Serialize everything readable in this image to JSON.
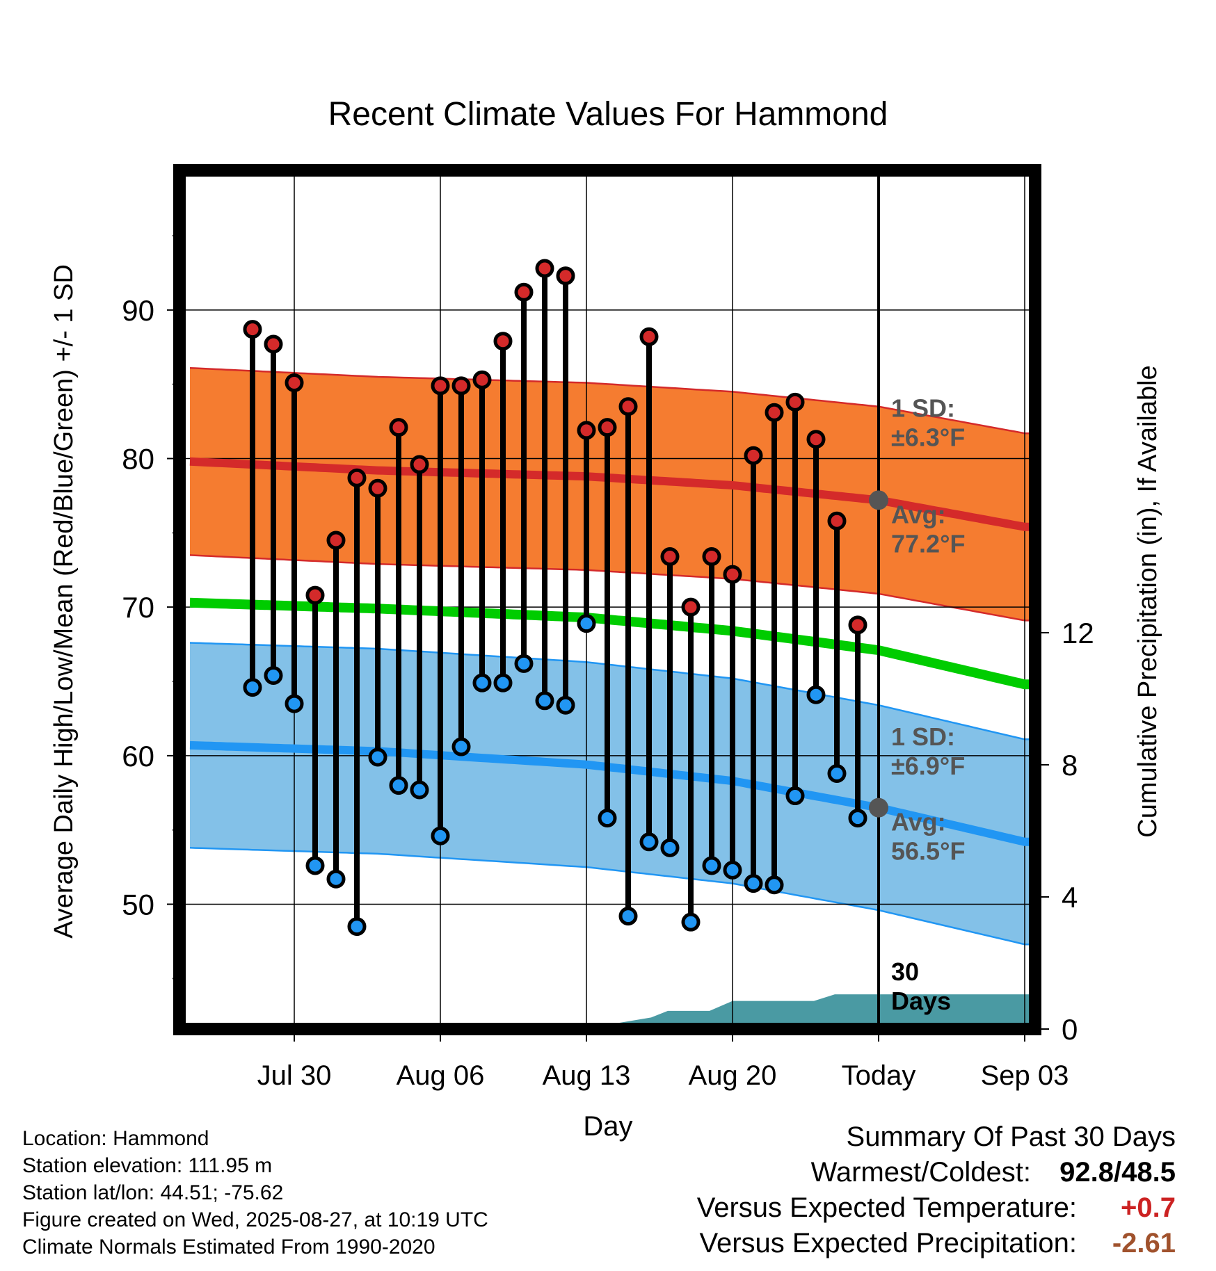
{
  "chart_data": {
    "type": "line",
    "title": "Recent Climate Values For Hammond",
    "xlabel": "Day",
    "ylabel_left": "Average Daily High/Low/Mean (Red/Blue/Green) +/- 1 SD",
    "ylabel_right": "Cumulative Precipitation (in), If Available",
    "x_day_range": [
      -33.5,
      7.5
    ],
    "x_ticks": [
      {
        "day": -28,
        "label": "Jul 30"
      },
      {
        "day": -21,
        "label": "Aug 06"
      },
      {
        "day": -14,
        "label": "Aug 13"
      },
      {
        "day": -7,
        "label": "Aug 20"
      },
      {
        "day": 0,
        "label": "Today"
      },
      {
        "day": 7,
        "label": "Sep 03"
      }
    ],
    "ylim": [
      41.6,
      99.4
    ],
    "y_ticks": [
      50,
      60,
      70,
      80,
      90
    ],
    "y_minor_ticks": [
      45,
      55,
      65,
      75,
      85,
      95
    ],
    "ylim_right": [
      0,
      26
    ],
    "y_ticks_right": [
      0,
      4,
      8,
      12
    ],
    "grid": true,
    "series": [
      {
        "name": "High",
        "color": "#d42a2a",
        "days": [
          -30,
          -29,
          -28,
          -27,
          -26,
          -25,
          -24,
          -23,
          -22,
          -21,
          -20,
          -19,
          -18,
          -17,
          -16,
          -15,
          -14,
          -13,
          -12,
          -11,
          -10,
          -9,
          -8,
          -7,
          -6,
          -5,
          -4,
          -3,
          -2,
          -1
        ],
        "values": [
          88.7,
          87.7,
          85.1,
          70.8,
          74.5,
          78.7,
          78.0,
          82.1,
          79.6,
          84.9,
          84.9,
          85.3,
          87.9,
          91.2,
          92.8,
          92.3,
          81.9,
          82.1,
          83.5,
          88.2,
          73.4,
          70.0,
          73.4,
          72.2,
          80.2,
          83.1,
          83.8,
          81.3,
          75.8,
          68.8
        ]
      },
      {
        "name": "Low",
        "color": "#2196f3",
        "days": [
          -30,
          -29,
          -28,
          -27,
          -26,
          -25,
          -24,
          -23,
          -22,
          -21,
          -20,
          -19,
          -18,
          -17,
          -16,
          -15,
          -14,
          -13,
          -12,
          -11,
          -10,
          -9,
          -8,
          -7,
          -6,
          -5,
          -4,
          -3,
          -2,
          -1
        ],
        "values": [
          64.6,
          65.4,
          63.5,
          52.6,
          51.7,
          48.5,
          59.9,
          58.0,
          57.7,
          54.6,
          60.6,
          64.9,
          64.9,
          66.2,
          63.7,
          63.4,
          68.9,
          55.8,
          49.2,
          54.2,
          53.8,
          48.8,
          52.6,
          52.3,
          51.4,
          51.3,
          57.3,
          64.1,
          58.8,
          55.8
        ]
      },
      {
        "name": "Normal High",
        "color": "#d42a2a",
        "sd_fill": "#f57c30",
        "days": [
          -33,
          -24,
          -14,
          -7,
          0,
          7
        ],
        "values": [
          79.8,
          79.2,
          78.8,
          78.2,
          77.2,
          75.4
        ],
        "sd": 6.3
      },
      {
        "name": "Normal Mean",
        "color": "#00cc00",
        "days": [
          -33,
          -24,
          -14,
          -7,
          0,
          7
        ],
        "values": [
          70.3,
          69.9,
          69.3,
          68.4,
          67.1,
          64.8
        ]
      },
      {
        "name": "Normal Low",
        "color": "#2196f3",
        "sd_fill": "#83c1e8",
        "days": [
          -33,
          -24,
          -14,
          -7,
          0,
          7
        ],
        "values": [
          60.7,
          60.3,
          59.4,
          58.3,
          56.5,
          54.2
        ],
        "sd": 6.9
      }
    ],
    "precip_cumulative": {
      "color": "#4a9aa3",
      "days": [
        -14.2,
        -10.9,
        -10.1,
        -8.1,
        -7,
        -3.1,
        -2.1,
        7.5
      ],
      "values": [
        0,
        0.35,
        0.55,
        0.55,
        0.85,
        0.85,
        1.05,
        1.05
      ]
    },
    "annotations": {
      "high_sd_line1": "1 SD:",
      "high_sd_line2": "±6.3°F",
      "high_avg_line1": "Avg:",
      "high_avg_line2": "77.2°F",
      "low_sd_line1": "1 SD:",
      "low_sd_line2": "±6.9°F",
      "low_avg_line1": "Avg:",
      "low_avg_line2": "56.5°F",
      "period_line1": "30",
      "period_line2": "Days"
    }
  },
  "station_info": {
    "location": "Location: Hammond",
    "elevation": "Station elevation: 111.95 m",
    "latlon": "Station lat/lon: 44.51; -75.62",
    "created": "Figure created on Wed, 2025-08-27, at 10:19 UTC",
    "normals": "Climate Normals Estimated From 1990-2020"
  },
  "summary": {
    "title": "Summary Of Past 30 Days",
    "warmest_coldest_label": "Warmest/Coldest:",
    "warmest_coldest_value": "92.8/48.5",
    "temp_label": "Versus Expected Temperature:",
    "temp_value": "+0.7",
    "temp_color": "#cc2222",
    "precip_label": "Versus Expected Precipitation:",
    "precip_value": "-2.61",
    "precip_color": "#a0522d"
  }
}
